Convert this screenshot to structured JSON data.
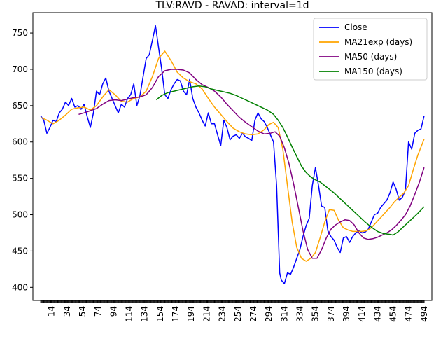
{
  "chart_data": {
    "type": "line",
    "title": "TLV:RAVD - RAVAD: interval=1d",
    "xlabel": "",
    "ylabel": "",
    "xlim": [
      -10,
      504
    ],
    "ylim": [
      382,
      778
    ],
    "x_ticks": [
      14,
      34,
      54,
      74,
      94,
      114,
      134,
      154,
      174,
      194,
      214,
      234,
      254,
      274,
      294,
      314,
      334,
      354,
      374,
      394,
      414,
      434,
      454,
      474,
      494
    ],
    "y_ticks": [
      400,
      450,
      500,
      550,
      600,
      650,
      700,
      750
    ],
    "grid": false,
    "legend_position": "upper right",
    "series": [
      {
        "name": "Close",
        "color": "#0000ff",
        "x": [
          0,
          4,
          8,
          12,
          16,
          20,
          24,
          28,
          32,
          36,
          40,
          44,
          48,
          52,
          56,
          60,
          64,
          68,
          72,
          76,
          80,
          84,
          88,
          92,
          96,
          100,
          104,
          108,
          112,
          116,
          120,
          124,
          128,
          132,
          136,
          140,
          144,
          148,
          152,
          156,
          160,
          164,
          168,
          172,
          176,
          180,
          184,
          188,
          192,
          196,
          200,
          204,
          208,
          212,
          216,
          220,
          224,
          228,
          232,
          236,
          240,
          244,
          248,
          252,
          256,
          260,
          264,
          268,
          272,
          276,
          280,
          284,
          288,
          292,
          296,
          300,
          304,
          308,
          310,
          314,
          318,
          322,
          326,
          330,
          334,
          338,
          342,
          346,
          350,
          354,
          358,
          362,
          366,
          370,
          374,
          378,
          382,
          386,
          390,
          394,
          398,
          402,
          406,
          410,
          414,
          418,
          422,
          426,
          430,
          434,
          438,
          442,
          446,
          450,
          454,
          458,
          462,
          466,
          470,
          474,
          478,
          482,
          486,
          490,
          494
        ],
        "y": [
          636,
          630,
          612,
          620,
          630,
          628,
          640,
          645,
          655,
          650,
          660,
          648,
          650,
          645,
          652,
          635,
          620,
          640,
          670,
          665,
          680,
          688,
          670,
          660,
          650,
          640,
          652,
          648,
          660,
          665,
          680,
          650,
          664,
          690,
          715,
          720,
          740,
          760,
          730,
          700,
          665,
          660,
          672,
          680,
          686,
          684,
          670,
          665,
          686,
          660,
          648,
          640,
          630,
          622,
          640,
          625,
          625,
          610,
          595,
          630,
          620,
          603,
          608,
          610,
          605,
          612,
          607,
          605,
          602,
          630,
          640,
          632,
          628,
          620,
          610,
          600,
          540,
          420,
          410,
          405,
          420,
          418,
          428,
          440,
          452,
          470,
          485,
          495,
          540,
          565,
          540,
          512,
          510,
          478,
          470,
          465,
          455,
          448,
          468,
          470,
          462,
          470,
          475,
          478,
          475,
          476,
          480,
          490,
          500,
          502,
          510,
          515,
          520,
          530,
          545,
          535,
          520,
          524,
          534,
          600,
          590,
          612,
          616,
          618,
          636
        ]
      },
      {
        "name": "MA21exp (days)",
        "color": "#ffa500",
        "x": [
          0,
          8,
          16,
          24,
          32,
          40,
          48,
          56,
          64,
          72,
          80,
          88,
          96,
          104,
          112,
          120,
          128,
          136,
          144,
          152,
          160,
          168,
          176,
          184,
          192,
          200,
          208,
          216,
          224,
          232,
          240,
          248,
          256,
          264,
          272,
          280,
          288,
          294,
          300,
          306,
          312,
          318,
          324,
          330,
          336,
          342,
          348,
          354,
          360,
          366,
          372,
          378,
          384,
          390,
          396,
          402,
          408,
          414,
          420,
          426,
          432,
          438,
          444,
          450,
          456,
          462,
          468,
          474,
          480,
          486,
          494
        ],
        "y": [
          634,
          630,
          625,
          630,
          637,
          645,
          647,
          648,
          644,
          650,
          662,
          672,
          665,
          656,
          655,
          660,
          662,
          670,
          690,
          715,
          725,
          712,
          696,
          688,
          683,
          680,
          673,
          660,
          648,
          638,
          628,
          619,
          614,
          611,
          610,
          611,
          617,
          624,
          627,
          620,
          590,
          540,
          490,
          455,
          440,
          436,
          440,
          448,
          468,
          490,
          507,
          506,
          492,
          482,
          479,
          477,
          477,
          477,
          478,
          482,
          489,
          496,
          503,
          510,
          518,
          524,
          530,
          540,
          562,
          582,
          604
        ]
      },
      {
        "name": "MA50 (days)",
        "color": "#800080",
        "x": [
          49,
          56,
          64,
          72,
          80,
          88,
          96,
          104,
          112,
          120,
          128,
          136,
          144,
          152,
          160,
          168,
          176,
          184,
          192,
          200,
          208,
          216,
          224,
          232,
          240,
          248,
          256,
          264,
          272,
          280,
          288,
          296,
          302,
          308,
          314,
          320,
          326,
          332,
          338,
          344,
          350,
          356,
          362,
          368,
          374,
          380,
          386,
          392,
          398,
          404,
          410,
          416,
          422,
          428,
          434,
          440,
          446,
          452,
          458,
          464,
          470,
          476,
          482,
          488,
          494
        ],
        "y": [
          638,
          640,
          643,
          646,
          652,
          657,
          658,
          657,
          659,
          661,
          662,
          665,
          675,
          690,
          698,
          700,
          700,
          699,
          695,
          686,
          679,
          675,
          670,
          662,
          652,
          643,
          634,
          627,
          621,
          615,
          611,
          612,
          614,
          608,
          592,
          570,
          542,
          510,
          478,
          452,
          440,
          440,
          452,
          468,
          480,
          486,
          490,
          493,
          492,
          486,
          475,
          468,
          466,
          467,
          469,
          472,
          475,
          479,
          485,
          492,
          500,
          512,
          528,
          545,
          565
        ]
      },
      {
        "name": "MA150 (days)",
        "color": "#008000",
        "x": [
          149,
          156,
          164,
          172,
          180,
          188,
          196,
          204,
          212,
          220,
          228,
          236,
          244,
          252,
          260,
          268,
          276,
          284,
          292,
          300,
          306,
          312,
          318,
          324,
          330,
          336,
          342,
          348,
          354,
          360,
          366,
          372,
          378,
          386,
          394,
          402,
          410,
          418,
          426,
          434,
          442,
          450,
          454,
          460,
          466,
          472,
          478,
          486,
          494
        ],
        "y": [
          658,
          664,
          668,
          670,
          672,
          674,
          676,
          677,
          676,
          673,
          671,
          669,
          667,
          664,
          660,
          656,
          652,
          648,
          644,
          638,
          630,
          620,
          607,
          593,
          580,
          567,
          558,
          552,
          548,
          545,
          540,
          535,
          530,
          522,
          514,
          506,
          498,
          490,
          483,
          477,
          474,
          473,
          472,
          476,
          482,
          488,
          494,
          502,
          511
        ]
      }
    ]
  }
}
